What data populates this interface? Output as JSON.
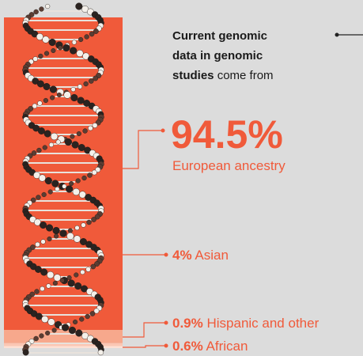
{
  "chart_data": {
    "type": "stacked-bar",
    "title_bold": [
      "Current genomic",
      "data in genomic",
      "studies"
    ],
    "title_rest": "come from",
    "categories": [
      "European ancestry",
      "Asian",
      "Hispanic and other",
      "African"
    ],
    "values": [
      94.5,
      4,
      0.9,
      0.6
    ],
    "value_labels": [
      "94.5%",
      "4%",
      "0.9%",
      "0.6%"
    ],
    "colors": [
      "#f05a3a",
      "#f7a88c",
      "#fbc7b4",
      "#fde0d4"
    ]
  }
}
